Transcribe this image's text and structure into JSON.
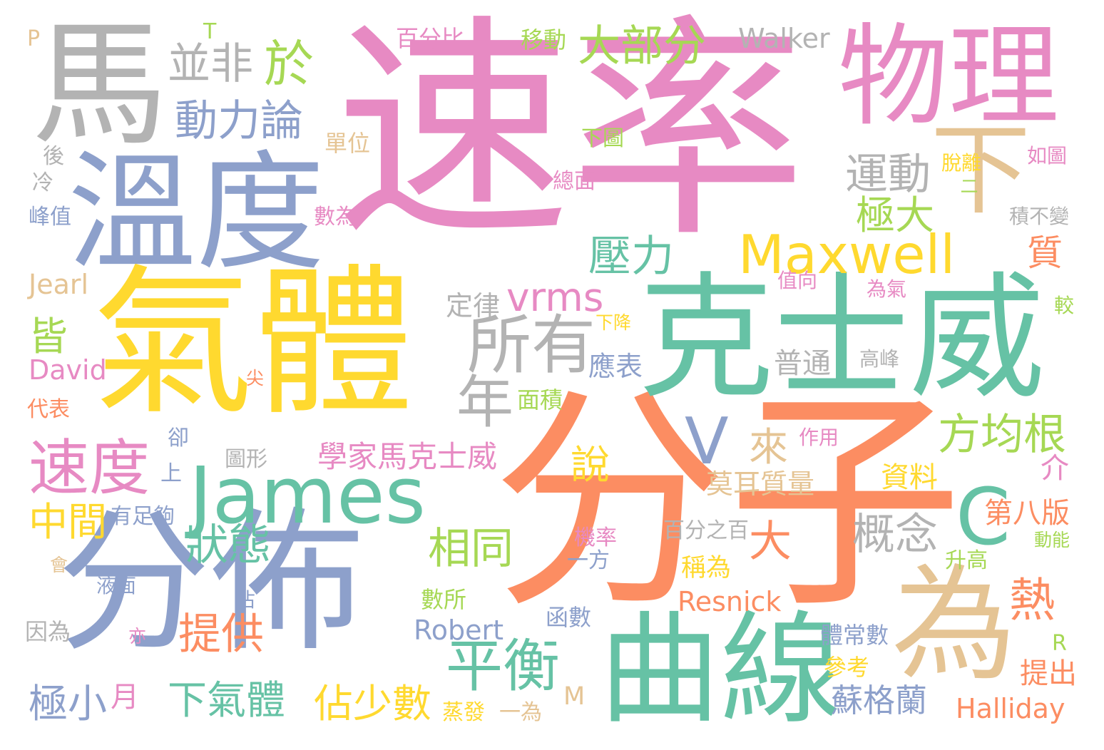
{
  "palette": {
    "pink": "#e78ac3",
    "orange": "#fc8d62",
    "green": "#66c2a5",
    "blue": "#8da0cb",
    "lime": "#a6d854",
    "yellow": "#ffd92f",
    "tan": "#e5c494",
    "gray": "#b3b3b3"
  },
  "words": [
    {
      "text": "速率",
      "color": "pink"
    },
    {
      "text": "分子",
      "color": "orange"
    },
    {
      "text": "氣體",
      "color": "yellow"
    },
    {
      "text": "克士威",
      "color": "green"
    },
    {
      "text": "分佈",
      "color": "blue"
    },
    {
      "text": "溫度",
      "color": "blue"
    },
    {
      "text": "馬",
      "color": "gray"
    },
    {
      "text": "物理",
      "color": "pink"
    },
    {
      "text": "曲線",
      "color": "green"
    },
    {
      "text": "James",
      "color": "green"
    },
    {
      "text": "為",
      "color": "tan"
    },
    {
      "text": "下",
      "color": "tan"
    },
    {
      "text": "Maxwell",
      "color": "yellow"
    },
    {
      "text": "所有",
      "color": "gray"
    },
    {
      "text": "速度",
      "color": "pink"
    },
    {
      "text": "平衡",
      "color": "green"
    },
    {
      "text": "年",
      "color": "gray"
    },
    {
      "text": "C",
      "color": "green"
    },
    {
      "text": "V",
      "color": "blue"
    },
    {
      "text": "於",
      "color": "lime"
    },
    {
      "text": "並非",
      "color": "gray"
    },
    {
      "text": "動力論",
      "color": "blue"
    },
    {
      "text": "大部分",
      "color": "lime"
    },
    {
      "text": "運動",
      "color": "gray"
    },
    {
      "text": "極大",
      "color": "lime"
    },
    {
      "text": "壓力",
      "color": "green"
    },
    {
      "text": "vrms",
      "color": "pink"
    },
    {
      "text": "方均根",
      "color": "lime"
    },
    {
      "text": "狀態",
      "color": "green"
    },
    {
      "text": "相同",
      "color": "lime"
    },
    {
      "text": "概念",
      "color": "gray"
    },
    {
      "text": "熱",
      "color": "orange"
    },
    {
      "text": "提供",
      "color": "orange"
    },
    {
      "text": "下氣體",
      "color": "green"
    },
    {
      "text": "極小",
      "color": "blue"
    },
    {
      "text": "佔少數",
      "color": "yellow"
    },
    {
      "text": "蘇格蘭",
      "color": "blue"
    },
    {
      "text": "中間",
      "color": "yellow"
    },
    {
      "text": "說",
      "color": "yellow"
    },
    {
      "text": "來",
      "color": "tan"
    },
    {
      "text": "大",
      "color": "orange"
    },
    {
      "text": "質",
      "color": "orange"
    },
    {
      "text": "皆",
      "color": "lime"
    },
    {
      "text": "學家馬克士威",
      "color": "pink"
    },
    {
      "text": "Walker",
      "color": "gray"
    },
    {
      "text": "Jearl",
      "color": "tan"
    },
    {
      "text": "David",
      "color": "pink"
    },
    {
      "text": "Resnick",
      "color": "orange"
    },
    {
      "text": "Robert",
      "color": "blue"
    },
    {
      "text": "Halliday",
      "color": "orange"
    },
    {
      "text": "第八版",
      "color": "orange"
    },
    {
      "text": "資料",
      "color": "yellow"
    },
    {
      "text": "莫耳質量",
      "color": "tan"
    },
    {
      "text": "普通",
      "color": "gray"
    },
    {
      "text": "定律",
      "color": "gray"
    },
    {
      "text": "應表",
      "color": "blue"
    },
    {
      "text": "面積",
      "color": "lime"
    },
    {
      "text": "百分比",
      "color": "pink"
    },
    {
      "text": "移動",
      "color": "lime"
    },
    {
      "text": "單位",
      "color": "tan"
    },
    {
      "text": "下圖",
      "color": "lime"
    },
    {
      "text": "總面",
      "color": "pink"
    },
    {
      "text": "數為",
      "color": "pink"
    },
    {
      "text": "脫離",
      "color": "yellow"
    },
    {
      "text": "如圖",
      "color": "pink"
    },
    {
      "text": "積不變",
      "color": "gray"
    },
    {
      "text": "峰值",
      "color": "blue"
    },
    {
      "text": "後",
      "color": "gray"
    },
    {
      "text": "冷",
      "color": "gray"
    },
    {
      "text": "P",
      "color": "tan"
    },
    {
      "text": "T",
      "color": "lime"
    },
    {
      "text": "值向",
      "color": "pink"
    },
    {
      "text": "為氣",
      "color": "pink"
    },
    {
      "text": "較",
      "color": "lime"
    },
    {
      "text": "高峰",
      "color": "gray"
    },
    {
      "text": "下降",
      "color": "yellow"
    },
    {
      "text": "尖",
      "color": "orange"
    },
    {
      "text": "代表",
      "color": "orange"
    },
    {
      "text": "卻",
      "color": "blue"
    },
    {
      "text": "上",
      "color": "blue"
    },
    {
      "text": "圖形",
      "color": "gray"
    },
    {
      "text": "作用",
      "color": "pink"
    },
    {
      "text": "有足夠",
      "color": "blue"
    },
    {
      "text": "機率",
      "color": "pink"
    },
    {
      "text": "百分之百",
      "color": "gray"
    },
    {
      "text": "稱為",
      "color": "yellow"
    },
    {
      "text": "一方",
      "color": "blue"
    },
    {
      "text": "升高",
      "color": "lime"
    },
    {
      "text": "動能",
      "color": "lime"
    },
    {
      "text": "會",
      "color": "tan"
    },
    {
      "text": "液面",
      "color": "blue"
    },
    {
      "text": "佔",
      "color": "blue"
    },
    {
      "text": "數所",
      "color": "lime"
    },
    {
      "text": "函數",
      "color": "blue"
    },
    {
      "text": "因為",
      "color": "gray"
    },
    {
      "text": "亦",
      "color": "pink"
    },
    {
      "text": "體常數",
      "color": "blue"
    },
    {
      "text": "參考",
      "color": "yellow"
    },
    {
      "text": "提出",
      "color": "orange"
    },
    {
      "text": "R",
      "color": "lime"
    },
    {
      "text": "月",
      "color": "pink"
    },
    {
      "text": "M",
      "color": "tan"
    },
    {
      "text": "蒸發",
      "color": "yellow"
    },
    {
      "text": "一為",
      "color": "tan"
    },
    {
      "text": "二",
      "color": "lime"
    },
    {
      "text": "介",
      "color": "pink"
    }
  ]
}
